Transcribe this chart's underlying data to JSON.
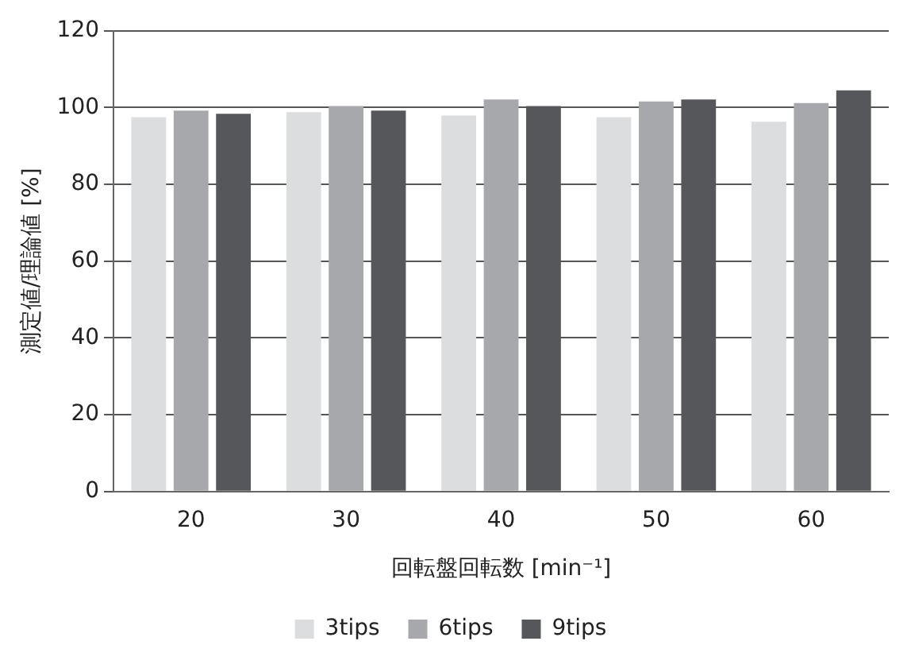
{
  "chart_data": {
    "type": "bar",
    "xlabel": "回転盤回転数 [min⁻¹]",
    "ylabel": "測定値/理論値 [%]",
    "categories": [
      "20",
      "30",
      "40",
      "50",
      "60"
    ],
    "series": [
      {
        "name": "3tips",
        "color": "#dcdddf",
        "values": [
          97.5,
          98.8,
          97.9,
          97.5,
          96.3
        ]
      },
      {
        "name": "6tips",
        "color": "#a7a8ab",
        "values": [
          99.2,
          100.4,
          102.1,
          101.6,
          101.2
        ]
      },
      {
        "name": "9tips",
        "color": "#56575a",
        "values": [
          98.4,
          99.2,
          100.4,
          102.1,
          104.5
        ]
      }
    ],
    "ylim": [
      0,
      120
    ],
    "yticks": [
      0,
      20,
      40,
      60,
      80,
      100,
      120
    ],
    "grid": "y",
    "legend": "bottom"
  }
}
